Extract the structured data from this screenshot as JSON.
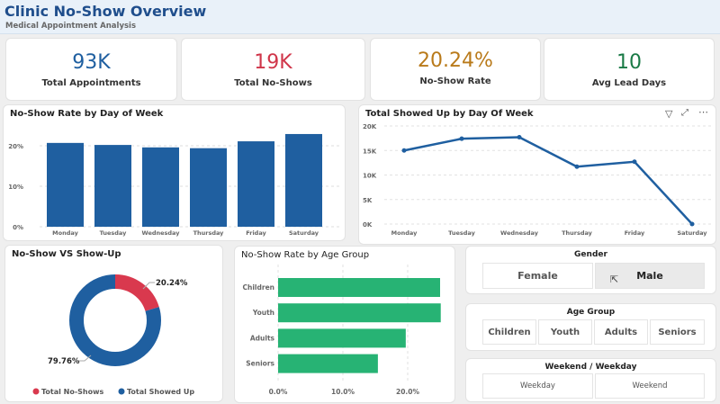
{
  "header": {
    "title": "Clinic No-Show Overview",
    "subtitle": "Medical Appointment Analysis"
  },
  "kpis": [
    {
      "value": "93K",
      "label": "Total Appointments",
      "color": "#1f5fa0"
    },
    {
      "value": "19K",
      "label": "Total No-Shows",
      "color": "#d0364a"
    },
    {
      "value": "20.24%",
      "label": "No-Show Rate",
      "color": "#b97a1a"
    },
    {
      "value": "10",
      "label": "Avg Lead Days",
      "color": "#1a7a46"
    }
  ],
  "colors": {
    "blue": "#1f5fa0",
    "red": "#d9394e",
    "green": "#27b374"
  },
  "chart_data": [
    {
      "type": "bar",
      "title": "No-Show Rate by Day of Week",
      "categories": [
        "Monday",
        "Tuesday",
        "Wednesday",
        "Thursday",
        "Friday",
        "Saturday"
      ],
      "values": [
        20.7,
        20.2,
        19.6,
        19.4,
        21.1,
        22.9
      ],
      "yticks": [
        "0%",
        "10%",
        "20%"
      ],
      "ylim": [
        0,
        25
      ],
      "grid": true
    },
    {
      "type": "line",
      "title": "Total Showed Up by Day Of Week",
      "categories": [
        "Monday",
        "Tuesday",
        "Wednesday",
        "Thursday",
        "Friday",
        "Saturday"
      ],
      "values": [
        15000,
        17400,
        17700,
        11700,
        12700,
        0
      ],
      "yticks": [
        "0K",
        "5K",
        "10K",
        "15K",
        "20K"
      ],
      "ylim": [
        0,
        20000
      ],
      "grid": true
    },
    {
      "type": "pie",
      "title": "No-Show VS Show-Up",
      "donut": true,
      "slices": [
        {
          "name": "Total No-Shows",
          "value": 20.24,
          "label": "20.24%",
          "color": "#d9394e"
        },
        {
          "name": "Total Showed Up",
          "value": 79.76,
          "label": "79.76%",
          "color": "#1f5fa0"
        }
      ],
      "legend": "bottom"
    },
    {
      "type": "bar",
      "orientation": "horizontal",
      "title": "No-Show Rate by Age Group",
      "categories": [
        "Children",
        "Youth",
        "Adults",
        "Seniors"
      ],
      "values": [
        25.0,
        25.1,
        19.7,
        15.4
      ],
      "xticks": [
        "0.0%",
        "10.0%",
        "20.0%"
      ],
      "xlim": [
        0,
        25
      ],
      "grid": true
    }
  ],
  "slicers": {
    "gender": {
      "title": "Gender",
      "options": [
        "Female",
        "Male"
      ],
      "selected": "Male"
    },
    "age": {
      "title": "Age Group",
      "options": [
        "Children",
        "Youth",
        "Adults",
        "Seniors"
      ]
    },
    "weekend": {
      "title": "Weekend / Weekday",
      "options": [
        "Weekday",
        "Weekend"
      ]
    }
  },
  "visual_icons": [
    "filter-icon",
    "focus-mode-icon",
    "more-options-icon"
  ]
}
